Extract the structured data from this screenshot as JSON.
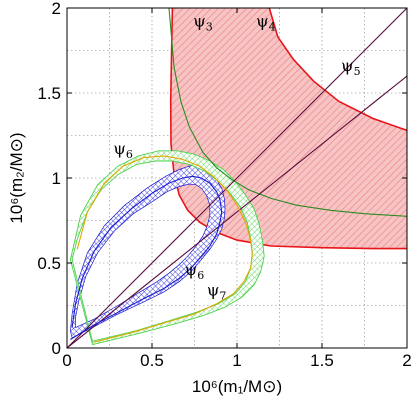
{
  "chart_data": {
    "type": "line",
    "xlabel": "10⁶(m₁/M⊙)",
    "ylabel": "10⁶(m₂/M⊙)",
    "xlim": [
      0,
      2
    ],
    "ylim": [
      0,
      2
    ],
    "x_ticks": [
      0,
      0.5,
      1,
      1.5,
      2
    ],
    "y_ticks": [
      0,
      0.5,
      1,
      1.5,
      2
    ],
    "x_tick_labels": [
      "0",
      "0.5",
      "1",
      "1.5",
      "2"
    ],
    "y_tick_labels": [
      "0",
      "0.5",
      "1",
      "1.5",
      "2"
    ],
    "grid": true,
    "grid_step": 0.25,
    "regions": [
      {
        "name": "ψ4 band",
        "style": "red-hatched",
        "outer_boundary": [
          [
            0.62,
            2
          ],
          [
            0.615,
            1.75
          ],
          [
            0.61,
            1.45
          ],
          [
            0.612,
            1.2
          ],
          [
            0.63,
            1.02
          ],
          [
            0.66,
            0.9
          ],
          [
            0.71,
            0.81
          ],
          [
            0.78,
            0.74
          ],
          [
            0.88,
            0.68
          ],
          [
            1.0,
            0.635
          ],
          [
            1.2,
            0.6
          ],
          [
            1.5,
            0.59
          ],
          [
            1.8,
            0.585
          ],
          [
            2.0,
            0.585
          ]
        ],
        "inner_boundary": [
          [
            2.0,
            1.28
          ],
          [
            1.8,
            1.35
          ],
          [
            1.6,
            1.45
          ],
          [
            1.45,
            1.57
          ],
          [
            1.33,
            1.7
          ],
          [
            1.24,
            1.83
          ],
          [
            1.19,
            2.0
          ]
        ]
      },
      {
        "name": "ψ6 ψ7 blue band",
        "style": "blue-crosshatched",
        "outer_boundary": [
          [
            0.03,
            0.06
          ],
          [
            0.15,
            0.12
          ],
          [
            0.3,
            0.2
          ],
          [
            0.45,
            0.27
          ],
          [
            0.57,
            0.33
          ],
          [
            0.66,
            0.39
          ],
          [
            0.73,
            0.45
          ],
          [
            0.79,
            0.52
          ],
          [
            0.84,
            0.58
          ],
          [
            0.88,
            0.64
          ],
          [
            0.91,
            0.7
          ],
          [
            0.925,
            0.76
          ],
          [
            0.93,
            0.82
          ],
          [
            0.925,
            0.88
          ],
          [
            0.91,
            0.94
          ],
          [
            0.88,
            0.99
          ],
          [
            0.84,
            1.04
          ],
          [
            0.8,
            1.07
          ],
          [
            0.76,
            1.08
          ],
          [
            0.72,
            1.07
          ],
          [
            0.66,
            1.05
          ],
          [
            0.58,
            1.01
          ],
          [
            0.47,
            0.94
          ],
          [
            0.34,
            0.84
          ],
          [
            0.22,
            0.72
          ],
          [
            0.12,
            0.56
          ],
          [
            0.06,
            0.38
          ],
          [
            0.03,
            0.2
          ],
          [
            0.02,
            0.1
          ]
        ],
        "inner_boundary": [
          [
            0.05,
            0.12
          ],
          [
            0.16,
            0.17
          ],
          [
            0.3,
            0.25
          ],
          [
            0.43,
            0.33
          ],
          [
            0.53,
            0.39
          ],
          [
            0.6,
            0.44
          ],
          [
            0.66,
            0.49
          ],
          [
            0.71,
            0.54
          ],
          [
            0.76,
            0.6
          ],
          [
            0.8,
            0.66
          ],
          [
            0.825,
            0.72
          ],
          [
            0.84,
            0.78
          ],
          [
            0.84,
            0.84
          ],
          [
            0.82,
            0.9
          ],
          [
            0.79,
            0.94
          ],
          [
            0.76,
            0.96
          ],
          [
            0.72,
            0.965
          ],
          [
            0.66,
            0.95
          ],
          [
            0.59,
            0.92
          ],
          [
            0.5,
            0.86
          ],
          [
            0.39,
            0.79
          ],
          [
            0.28,
            0.69
          ],
          [
            0.18,
            0.56
          ],
          [
            0.11,
            0.42
          ],
          [
            0.07,
            0.28
          ],
          [
            0.05,
            0.18
          ]
        ]
      },
      {
        "name": "ψ6 ψ7 green band",
        "style": "green-hatched",
        "outer_boundary": [
          [
            0.02,
            0.52
          ],
          [
            0.08,
            0.78
          ],
          [
            0.18,
            0.96
          ],
          [
            0.3,
            1.07
          ],
          [
            0.42,
            1.13
          ],
          [
            0.54,
            1.16
          ],
          [
            0.65,
            1.16
          ],
          [
            0.75,
            1.14
          ],
          [
            0.84,
            1.1
          ],
          [
            0.92,
            1.05
          ],
          [
            0.99,
            0.98
          ],
          [
            1.05,
            0.9
          ],
          [
            1.1,
            0.82
          ],
          [
            1.13,
            0.73
          ],
          [
            1.15,
            0.63
          ],
          [
            1.16,
            0.54
          ],
          [
            1.14,
            0.45
          ],
          [
            1.1,
            0.37
          ],
          [
            1.03,
            0.3
          ],
          [
            0.93,
            0.24
          ],
          [
            0.8,
            0.19
          ],
          [
            0.63,
            0.14
          ],
          [
            0.4,
            0.08
          ],
          [
            0.15,
            0.02
          ]
        ],
        "inner_boundary": [
          [
            0.15,
            0.04
          ],
          [
            0.4,
            0.1
          ],
          [
            0.6,
            0.16
          ],
          [
            0.76,
            0.21
          ],
          [
            0.89,
            0.26
          ],
          [
            0.99,
            0.32
          ],
          [
            1.05,
            0.39
          ],
          [
            1.08,
            0.47
          ],
          [
            1.09,
            0.56
          ],
          [
            1.08,
            0.65
          ],
          [
            1.06,
            0.74
          ],
          [
            1.02,
            0.83
          ],
          [
            0.96,
            0.91
          ],
          [
            0.89,
            0.98
          ],
          [
            0.81,
            1.04
          ],
          [
            0.72,
            1.08
          ],
          [
            0.62,
            1.1
          ],
          [
            0.52,
            1.1
          ],
          [
            0.41,
            1.08
          ],
          [
            0.3,
            1.02
          ],
          [
            0.2,
            0.93
          ],
          [
            0.12,
            0.8
          ],
          [
            0.06,
            0.64
          ],
          [
            0.03,
            0.52
          ]
        ]
      }
    ],
    "series": [
      {
        "name": "ψ3",
        "color": "#2e8b22",
        "points": [
          [
            0.6,
            2.0
          ],
          [
            0.63,
            1.65
          ],
          [
            0.67,
            1.45
          ],
          [
            0.72,
            1.3
          ],
          [
            0.8,
            1.15
          ],
          [
            0.88,
            1.06
          ],
          [
            0.97,
            0.99
          ],
          [
            1.07,
            0.93
          ],
          [
            1.2,
            0.88
          ],
          [
            1.35,
            0.84
          ],
          [
            1.55,
            0.81
          ],
          [
            1.75,
            0.79
          ],
          [
            2.0,
            0.775
          ]
        ]
      },
      {
        "name": "ψ5",
        "color": "#5b0a3c",
        "points": [
          [
            0,
            0
          ],
          [
            2,
            2
          ]
        ]
      },
      {
        "name": "ψ5",
        "color": "#5b0a3c",
        "points": [
          [
            0,
            0
          ],
          [
            2,
            1.6
          ]
        ]
      },
      {
        "name": "ψ6",
        "color": "#e0a800",
        "points": [
          [
            0.06,
            0.58
          ],
          [
            0.12,
            0.8
          ],
          [
            0.22,
            0.97
          ],
          [
            0.33,
            1.07
          ],
          [
            0.45,
            1.12
          ],
          [
            0.57,
            1.13
          ],
          [
            0.68,
            1.11
          ],
          [
            0.78,
            1.07
          ],
          [
            0.86,
            1.01
          ],
          [
            0.94,
            0.93
          ],
          [
            1.0,
            0.84
          ],
          [
            1.05,
            0.74
          ],
          [
            1.08,
            0.64
          ],
          [
            1.09,
            0.55
          ],
          [
            1.08,
            0.47
          ],
          [
            1.04,
            0.39
          ],
          [
            0.98,
            0.32
          ],
          [
            0.88,
            0.26
          ],
          [
            0.75,
            0.2
          ],
          [
            0.58,
            0.15
          ],
          [
            0.38,
            0.09
          ],
          [
            0.16,
            0.035
          ]
        ]
      },
      {
        "name": "ψ6 blue",
        "color": "#1a1ad0",
        "points": [
          [
            0.02,
            0.05
          ],
          [
            0.15,
            0.13
          ],
          [
            0.3,
            0.21
          ],
          [
            0.45,
            0.29
          ],
          [
            0.57,
            0.35
          ],
          [
            0.66,
            0.41
          ],
          [
            0.73,
            0.47
          ],
          [
            0.79,
            0.54
          ],
          [
            0.84,
            0.6
          ],
          [
            0.88,
            0.67
          ],
          [
            0.9,
            0.74
          ],
          [
            0.91,
            0.8
          ],
          [
            0.9,
            0.87
          ],
          [
            0.88,
            0.92
          ],
          [
            0.84,
            0.97
          ],
          [
            0.79,
            1.0
          ],
          [
            0.74,
            1.01
          ],
          [
            0.68,
            1.0
          ],
          [
            0.6,
            0.97
          ],
          [
            0.5,
            0.91
          ],
          [
            0.38,
            0.82
          ],
          [
            0.26,
            0.71
          ],
          [
            0.16,
            0.57
          ],
          [
            0.09,
            0.41
          ],
          [
            0.05,
            0.26
          ],
          [
            0.03,
            0.12
          ]
        ]
      }
    ],
    "annotations": [
      {
        "base": "ψ",
        "sub": "3",
        "x": 0.8,
        "y": 1.89
      },
      {
        "base": "ψ",
        "sub": "4",
        "x": 1.17,
        "y": 1.89
      },
      {
        "base": "ψ",
        "sub": "5",
        "x": 1.67,
        "y": 1.63
      },
      {
        "base": "ψ",
        "sub": "6",
        "x": 0.33,
        "y": 1.14
      },
      {
        "base": "ψ",
        "sub": "6",
        "x": 0.75,
        "y": 0.43
      },
      {
        "base": "ψ",
        "sub": "7",
        "x": 0.88,
        "y": 0.31
      }
    ],
    "colors": {
      "red_fill": "#f6c0c0",
      "red_hatch": "#ee7d7d",
      "red_edge": "#e8141a",
      "blue_edge": "#1a1ad0",
      "green_edge": "#4fd24f",
      "grid": "#808080"
    }
  }
}
